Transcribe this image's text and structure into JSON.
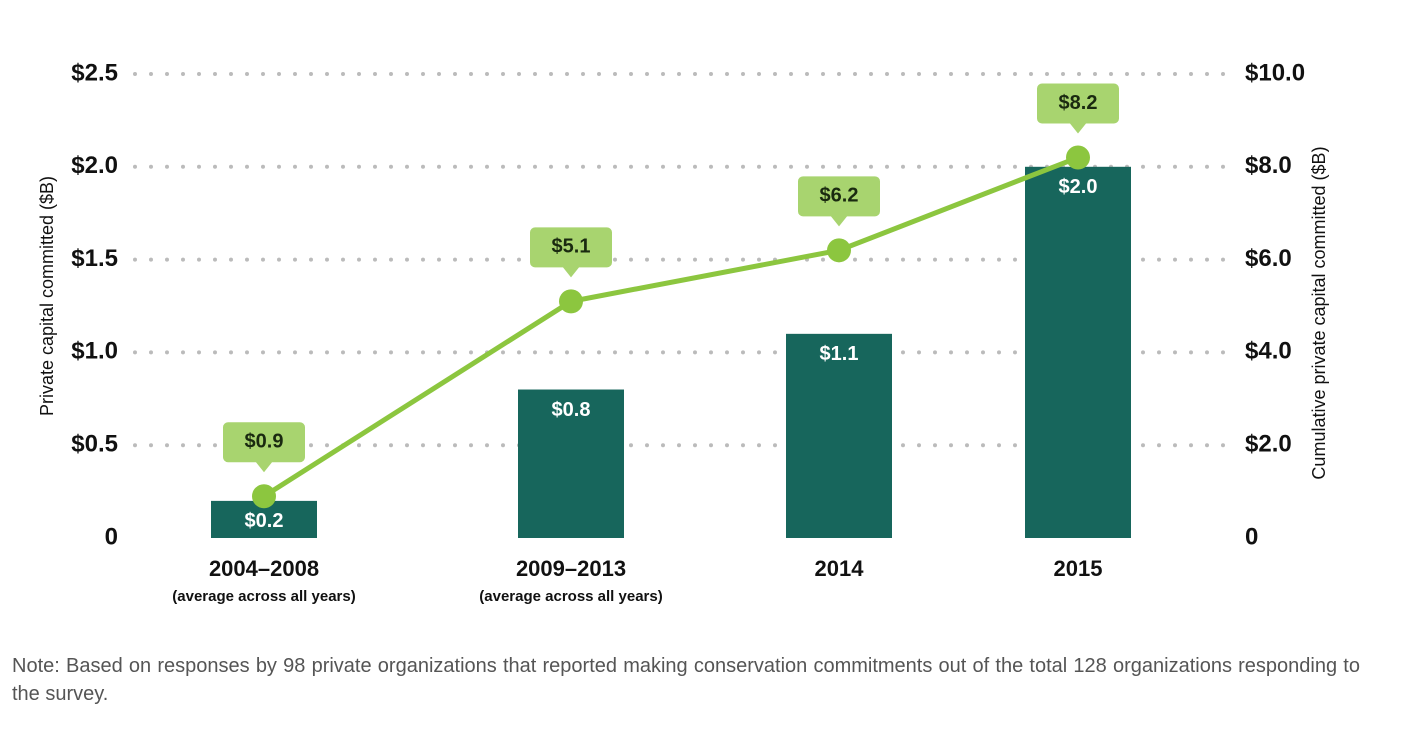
{
  "chart_data": {
    "type": "bar",
    "categories": [
      "2004–2008",
      "2009–2013",
      "2014",
      "2015"
    ],
    "category_notes": [
      "(average across all years)",
      "(average across all years)",
      null,
      null
    ],
    "series": [
      {
        "type": "bar",
        "color": "#17665c",
        "values": [
          0.2,
          0.8,
          1.1,
          2.0
        ],
        "value_labels": [
          "$0.2",
          "$0.8",
          "$1.1",
          "$2.0"
        ]
      },
      {
        "type": "line",
        "axis": "y2",
        "color": "#8cc63f",
        "label_color": "#a8d46f",
        "values": [
          0.9,
          5.1,
          6.2,
          8.2
        ],
        "value_labels": [
          "$0.9",
          "$5.1",
          "$6.2",
          "$8.2"
        ]
      }
    ],
    "ylabel": "Private capital committed ($B)",
    "y2label": "Cumulative private capital committed ($B)",
    "ylim": [
      0,
      2.5
    ],
    "yticks": [
      0,
      {
        "value": 0.5,
        "label": "$0.5"
      },
      {
        "value": 1.0,
        "label": "$1.0"
      },
      {
        "value": 1.5,
        "label": "$1.5"
      },
      {
        "value": 2.0,
        "label": "$2.0"
      },
      {
        "value": 2.5,
        "label": "$2.5"
      }
    ],
    "y2lim": [
      0,
      10
    ],
    "y2ticks": [
      0,
      {
        "value": 2,
        "label": "$2.0"
      },
      {
        "value": 4,
        "label": "$4.0"
      },
      {
        "value": 6,
        "label": "$6.0"
      },
      {
        "value": 8,
        "label": "$8.0"
      },
      {
        "value": 10,
        "label": "$10.0"
      }
    ],
    "grid": true,
    "note": "Note: Based on responses by 98 private organizations that reported making conservation commitments out of the total 128 organizations responding to the survey."
  }
}
